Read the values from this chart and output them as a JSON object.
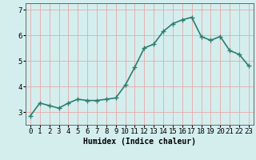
{
  "x": [
    0,
    1,
    2,
    3,
    4,
    5,
    6,
    7,
    8,
    9,
    10,
    11,
    12,
    13,
    14,
    15,
    16,
    17,
    18,
    19,
    20,
    21,
    22,
    23
  ],
  "y": [
    2.85,
    3.35,
    3.25,
    3.15,
    3.35,
    3.5,
    3.45,
    3.45,
    3.5,
    3.55,
    4.05,
    4.75,
    5.5,
    5.65,
    6.15,
    6.45,
    6.6,
    6.7,
    5.95,
    5.8,
    5.95,
    5.4,
    5.25,
    4.8
  ],
  "line_color": "#2e7d6e",
  "marker": "+",
  "marker_size": 4,
  "bg_color": "#d4eeee",
  "grid_color": "#e8a8a8",
  "xlabel": "Humidex (Indice chaleur)",
  "ylim": [
    2.5,
    7.25
  ],
  "yticks": [
    3,
    4,
    5,
    6,
    7
  ],
  "xtick_labels": [
    "0",
    "1",
    "2",
    "3",
    "4",
    "5",
    "6",
    "7",
    "8",
    "9",
    "10",
    "11",
    "12",
    "13",
    "14",
    "15",
    "16",
    "17",
    "18",
    "19",
    "20",
    "21",
    "22",
    "23"
  ],
  "xlabel_fontsize": 7,
  "tick_fontsize": 6.5,
  "line_width": 1.2,
  "spine_color": "#666666"
}
